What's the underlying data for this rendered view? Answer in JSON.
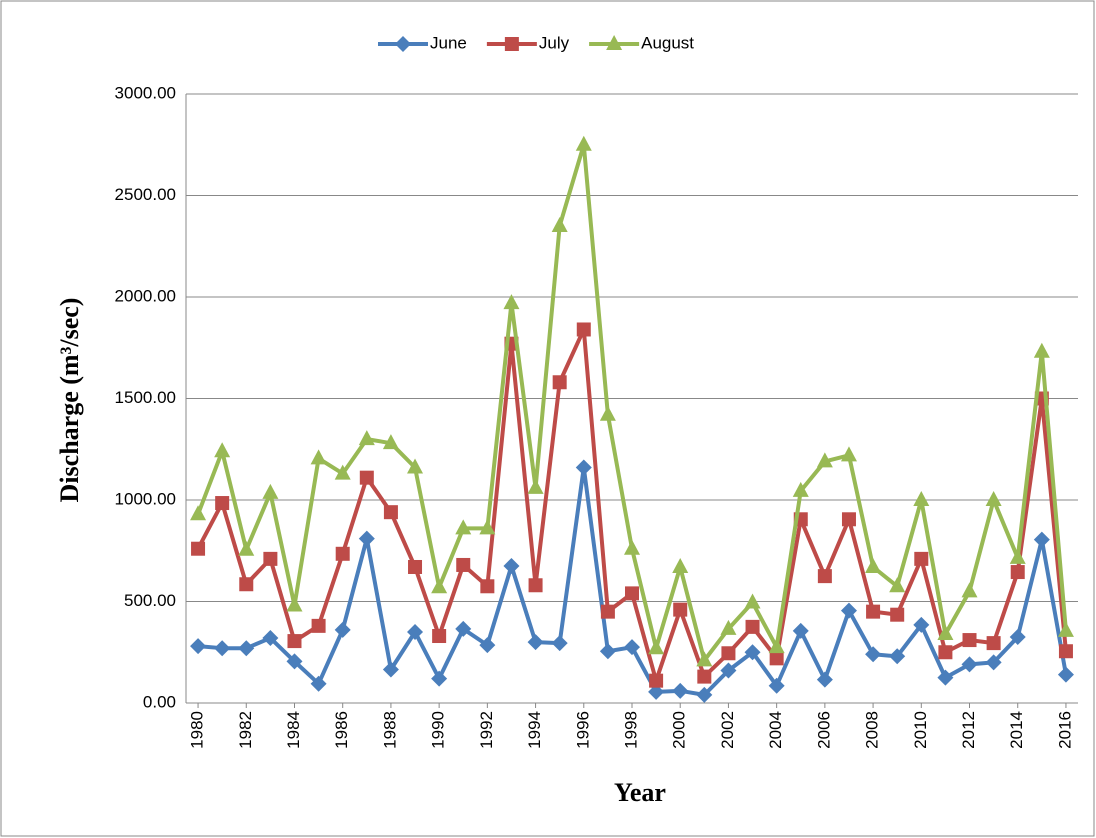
{
  "chart_data": {
    "type": "line",
    "y_label": "Discharge (m³/sec)",
    "x_label": "Year",
    "x": [
      1980,
      1981,
      1982,
      1983,
      1984,
      1985,
      1986,
      1987,
      1988,
      1989,
      1990,
      1991,
      1992,
      1993,
      1994,
      1995,
      1996,
      1997,
      1998,
      1999,
      2000,
      2001,
      2002,
      2003,
      2004,
      2005,
      2006,
      2007,
      2008,
      2009,
      2010,
      2011,
      2012,
      2013,
      2014,
      2015,
      2016
    ],
    "xlim": [
      1979.5,
      2016.5
    ],
    "xticks": [
      1980,
      1982,
      1984,
      1986,
      1988,
      1990,
      1992,
      1994,
      1996,
      1998,
      2000,
      2002,
      2004,
      2006,
      2008,
      2010,
      2012,
      2014,
      2016
    ],
    "ylim": [
      0,
      3000
    ],
    "yticks": [
      {
        "value": 0,
        "label": "0.00"
      },
      {
        "value": 500,
        "label": "500.00"
      },
      {
        "value": 1000,
        "label": "1000.00"
      },
      {
        "value": 1500,
        "label": "1500.00"
      },
      {
        "value": 2000,
        "label": "2000.00"
      },
      {
        "value": 2500,
        "label": "2500.00"
      },
      {
        "value": 3000,
        "label": "3000.00"
      }
    ],
    "grid": true,
    "legend": "top",
    "series": [
      {
        "name": "June",
        "color": "#4a7ebb",
        "marker": "diamond",
        "values": [
          280,
          270,
          270,
          320,
          205,
          95,
          360,
          810,
          165,
          350,
          120,
          365,
          285,
          675,
          300,
          295,
          1160,
          255,
          275,
          55,
          60,
          40,
          160,
          250,
          85,
          355,
          115,
          455,
          240,
          230,
          385,
          125,
          190,
          200,
          325,
          805,
          140
        ]
      },
      {
        "name": "July",
        "color": "#be4b48",
        "marker": "square",
        "values": [
          760,
          985,
          585,
          710,
          305,
          380,
          735,
          1110,
          940,
          670,
          330,
          680,
          575,
          1770,
          580,
          1580,
          1840,
          450,
          540,
          110,
          460,
          130,
          245,
          375,
          220,
          905,
          625,
          905,
          450,
          435,
          710,
          250,
          310,
          295,
          645,
          1500,
          255
        ]
      },
      {
        "name": "August",
        "color": "#98b954",
        "marker": "triangle",
        "values": [
          930,
          1240,
          755,
          1035,
          480,
          1205,
          1130,
          1300,
          1280,
          1160,
          570,
          860,
          860,
          1970,
          1060,
          2350,
          2750,
          1420,
          760,
          270,
          670,
          210,
          365,
          495,
          275,
          1045,
          1190,
          1220,
          670,
          575,
          1000,
          340,
          550,
          1000,
          715,
          1730,
          355
        ]
      }
    ]
  }
}
